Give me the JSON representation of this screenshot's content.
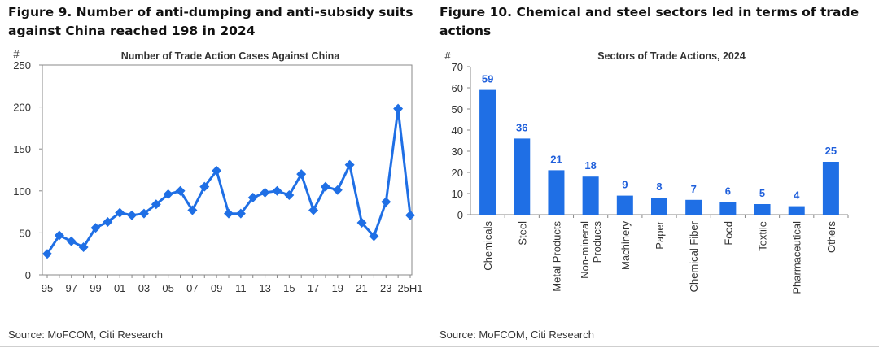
{
  "left": {
    "figure_title": "Figure 9. Number of anti-dumping and anti-subsidy suits against China reached 198 in 2024",
    "source": "Source: MoFCOM, Citi Research"
  },
  "right": {
    "figure_title": "Figure 10. Chemical and steel sectors led in terms of trade actions",
    "source": "Source: MoFCOM, Citi Research"
  },
  "colors": {
    "series": "#1f6fe5",
    "label": "#1f5fdb",
    "axis": "#888888"
  },
  "chart_data": [
    {
      "type": "line",
      "title": "Number of Trade Action Cases Against China",
      "ylabel": "#",
      "xlabel": "",
      "ylim": [
        0,
        250
      ],
      "yticks": [
        0,
        50,
        100,
        150,
        200,
        250
      ],
      "grid": false,
      "marker": "diamond",
      "x": [
        "95",
        "96",
        "97",
        "98",
        "99",
        "00",
        "01",
        "02",
        "03",
        "04",
        "05",
        "06",
        "07",
        "08",
        "09",
        "10",
        "11",
        "12",
        "13",
        "14",
        "15",
        "16",
        "17",
        "18",
        "19",
        "20",
        "21",
        "22",
        "23",
        "24",
        "25H1"
      ],
      "x_tick_labels_shown": [
        "95",
        "97",
        "99",
        "01",
        "03",
        "05",
        "07",
        "09",
        "11",
        "13",
        "15",
        "17",
        "19",
        "21",
        "23",
        "25H1"
      ],
      "series": [
        {
          "values": [
            25,
            47,
            40,
            33,
            56,
            63,
            74,
            71,
            73,
            84,
            96,
            100,
            77,
            105,
            124,
            73,
            73,
            92,
            98,
            100,
            95,
            120,
            77,
            105,
            101,
            131,
            62,
            46,
            87,
            198,
            71
          ]
        }
      ]
    },
    {
      "type": "bar",
      "title": "Sectors of Trade Actions, 2024",
      "ylabel": "#",
      "xlabel": "",
      "ylim": [
        0,
        70
      ],
      "yticks": [
        0,
        10,
        20,
        30,
        40,
        50,
        60,
        70
      ],
      "grid": false,
      "categories": [
        "Chemicals",
        "Steel",
        "Metal Products",
        "Non-mineral Products",
        "Machinery",
        "Paper",
        "Chemical Fiber",
        "Food",
        "Textile",
        "Pharmaceutical",
        "Others"
      ],
      "category_label_lines": [
        [
          "Chemicals"
        ],
        [
          "Steel"
        ],
        [
          "Metal Products"
        ],
        [
          "Non-mineral",
          "Products"
        ],
        [
          "Machinery"
        ],
        [
          "Paper"
        ],
        [
          "Chemical Fiber"
        ],
        [
          "Food"
        ],
        [
          "Textile"
        ],
        [
          "Pharmaceutical"
        ],
        [
          "Others"
        ]
      ],
      "values": [
        59,
        36,
        21,
        18,
        9,
        8,
        7,
        6,
        5,
        4,
        25
      ]
    }
  ]
}
